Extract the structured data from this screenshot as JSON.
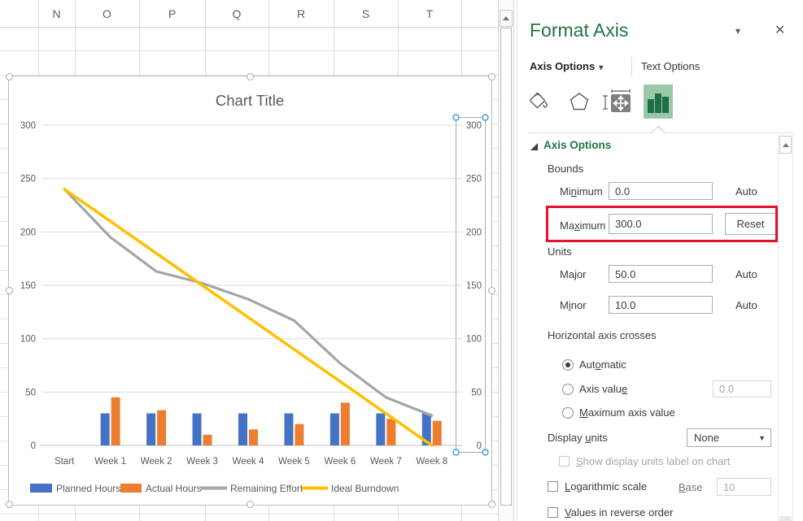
{
  "spreadsheet": {
    "column_headers": [
      "N",
      "O",
      "P",
      "Q",
      "R",
      "S",
      "T"
    ]
  },
  "chart_data": {
    "type": "combo",
    "title": "Chart Title",
    "categories": [
      "Start",
      "Week 1",
      "Week 2",
      "Week 3",
      "Week 4",
      "Week 5",
      "Week 6",
      "Week 7",
      "Week 8"
    ],
    "series": [
      {
        "name": "Planned Hours",
        "type": "bar",
        "color": "#4472C4",
        "values": [
          null,
          30,
          30,
          30,
          30,
          30,
          30,
          30,
          30
        ]
      },
      {
        "name": "Actual Hours",
        "type": "bar",
        "color": "#ED7D31",
        "values": [
          null,
          45,
          33,
          10,
          15,
          20,
          40,
          25,
          23
        ]
      },
      {
        "name": "Remaining Effort",
        "type": "line",
        "color": "#A5A5A5",
        "values": [
          240,
          195,
          163,
          152,
          137,
          117,
          77,
          45,
          28
        ]
      },
      {
        "name": "Ideal Burndown",
        "type": "line",
        "color": "#FFC000",
        "values": [
          240,
          210,
          180,
          150,
          120,
          90,
          60,
          30,
          0
        ]
      }
    ],
    "primary_y_axis": {
      "min": 0,
      "max": 300,
      "major_unit": 50
    },
    "secondary_y_axis": {
      "min": 0,
      "max": 300,
      "major_unit": 50,
      "selected": true
    },
    "legend_position": "bottom",
    "gridlines": true
  },
  "pane": {
    "title": "Format Axis",
    "tabs": {
      "axis_options": "Axis Options",
      "text_options": "Text Options"
    },
    "section_header": "Axis Options",
    "bounds": {
      "label": "Bounds",
      "minimum": {
        "label": "Minimum",
        "underline_index": 2,
        "value": "0.0",
        "auto": "Auto"
      },
      "maximum": {
        "label": "Maximum",
        "underline_index": 2,
        "value": "300.0",
        "reset": "Reset"
      }
    },
    "units": {
      "label": "Units",
      "major": {
        "label": "Major",
        "underline_index": 2,
        "value": "50.0",
        "auto": "Auto"
      },
      "minor": {
        "label": "Minor",
        "underline_index": 1,
        "value": "10.0",
        "auto": "Auto"
      }
    },
    "crosses": {
      "label": "Horizontal axis crosses",
      "automatic": {
        "label": "Automatic",
        "underline_index": 3,
        "selected": true
      },
      "axis_value": {
        "label": "Axis value",
        "underline_index": 9,
        "selected": false,
        "value": "0.0",
        "disabled": true
      },
      "max_axis_value": {
        "label": "Maximum axis value",
        "underline_index": 0,
        "selected": false
      }
    },
    "display_units": {
      "label": "Display units",
      "underline_index": 8,
      "value": "None",
      "show_label": {
        "label": "Show display units label on chart",
        "underline_index": 0,
        "checked": false,
        "disabled": true
      }
    },
    "logarithmic": {
      "label": "Logarithmic scale",
      "underline_index": 0,
      "checked": false,
      "base": {
        "label": "Base",
        "underline_index": 0,
        "value": "10",
        "disabled": true
      }
    },
    "reverse": {
      "label": "Values in reverse order",
      "underline_index": 0,
      "checked": false
    },
    "glyphs": {
      "pane_menu": "▾",
      "close": "✕",
      "tab_caret": "▾",
      "dropdown": "▼"
    }
  },
  "annotation": {
    "color": "#e8112d"
  }
}
